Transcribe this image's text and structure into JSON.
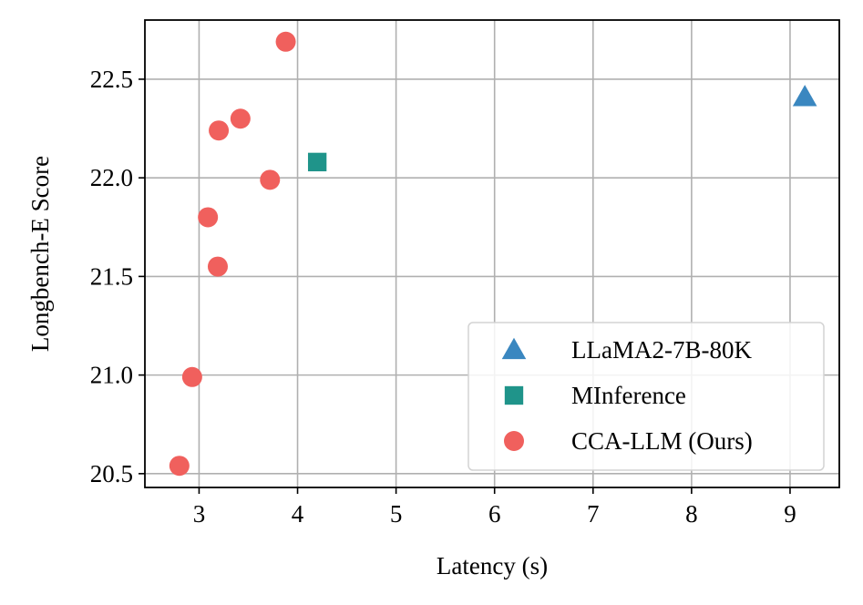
{
  "chart_data": {
    "type": "scatter",
    "title": "",
    "xlabel": "Latency (s)",
    "ylabel": "Longbench-E Score",
    "xlim": [
      2.45,
      9.5
    ],
    "ylim": [
      20.43,
      22.8
    ],
    "x_ticks": [
      3,
      4,
      5,
      6,
      7,
      8,
      9
    ],
    "x_tick_labels": [
      "3",
      "4",
      "5",
      "6",
      "7",
      "8",
      "9"
    ],
    "y_ticks": [
      20.5,
      21.0,
      21.5,
      22.0,
      22.5
    ],
    "y_tick_labels": [
      "20.5",
      "21.0",
      "21.5",
      "22.0",
      "22.5"
    ],
    "grid": true,
    "legend_position": "bottom-right",
    "series": [
      {
        "name": "LLaMA2-7B-80K",
        "marker": "triangle",
        "color": "#3a87c0",
        "points": [
          {
            "x": 9.15,
            "y": 22.41
          }
        ]
      },
      {
        "name": "MInference",
        "marker": "square",
        "color": "#1f948a",
        "points": [
          {
            "x": 4.2,
            "y": 22.08
          }
        ]
      },
      {
        "name": "CCA-LLM (Ours)",
        "marker": "circle",
        "color": "#f0605d",
        "points": [
          {
            "x": 3.88,
            "y": 22.69
          },
          {
            "x": 3.42,
            "y": 22.3
          },
          {
            "x": 3.2,
            "y": 22.24
          },
          {
            "x": 3.72,
            "y": 21.99
          },
          {
            "x": 3.09,
            "y": 21.8
          },
          {
            "x": 3.19,
            "y": 21.55
          },
          {
            "x": 2.93,
            "y": 20.99
          },
          {
            "x": 2.8,
            "y": 20.54
          }
        ]
      }
    ]
  }
}
